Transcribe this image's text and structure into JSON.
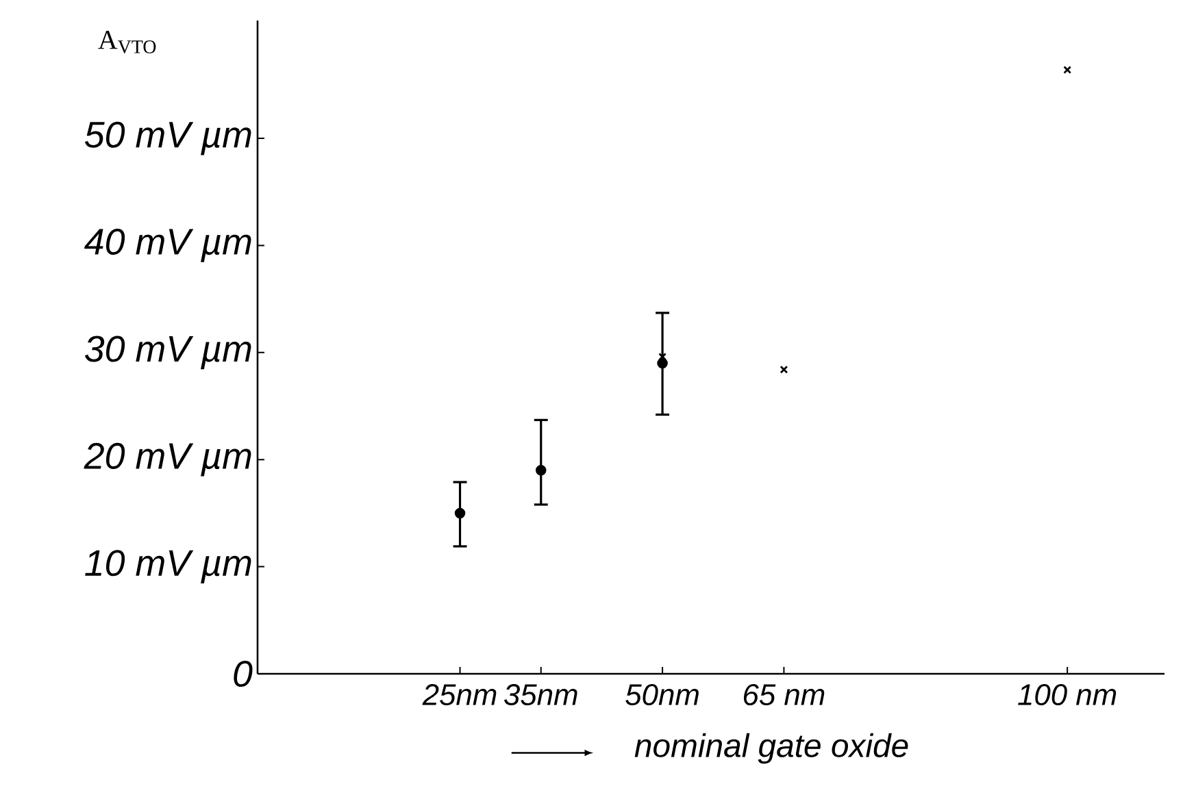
{
  "chart_data": {
    "type": "scatter",
    "ylabel": "A$_{VTO}$",
    "xlabel": "nominal gate oxide",
    "xlim": [
      0,
      112
    ],
    "ylim": [
      0,
      61
    ],
    "xticks": [
      {
        "value": 25,
        "label": "25nm"
      },
      {
        "value": 35,
        "label": "35nm"
      },
      {
        "value": 50,
        "label": "50nm"
      },
      {
        "value": 65,
        "label": "65 nm"
      },
      {
        "value": 100,
        "label": "100 nm"
      }
    ],
    "yticks": [
      {
        "value": 0,
        "label": "0"
      },
      {
        "value": 10,
        "label": "10 mV µm"
      },
      {
        "value": 20,
        "label": "20 mV µm"
      },
      {
        "value": 30,
        "label": "30 mV µm"
      },
      {
        "value": 40,
        "label": "40 mV µm"
      },
      {
        "value": 50,
        "label": "50 mV µm"
      }
    ],
    "grid": false,
    "series": [
      {
        "color": "#000000",
        "marker": "circle",
        "x": [
          25,
          35,
          50
        ],
        "values": [
          15,
          19,
          29
        ],
        "errors": [
          [
            11.9,
            17.9
          ],
          [
            15.8,
            23.7
          ],
          [
            24.2,
            33.7
          ]
        ]
      },
      {
        "color": "#000000",
        "marker": "cross",
        "x": [
          50,
          65,
          100
        ],
        "values": [
          29.6,
          28.4,
          56.4
        ]
      }
    ]
  }
}
